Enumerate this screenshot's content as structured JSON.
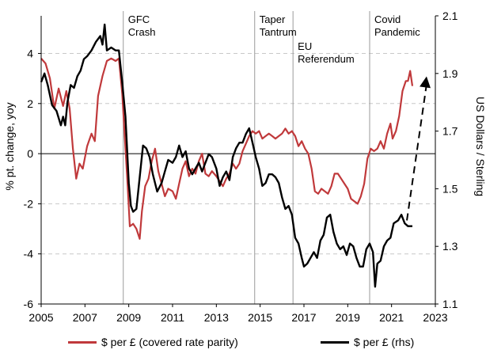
{
  "chart_data": {
    "type": "line",
    "ylabel_left": "% pt. change, yoy",
    "ylabel_right": "US Dollars / Sterling",
    "x_ticks": [
      "2005",
      "2007",
      "2009",
      "2011",
      "2013",
      "2015",
      "2017",
      "2019",
      "2021",
      "2023"
    ],
    "xlim": [
      2005,
      2023
    ],
    "y_left_ticks": [
      "4",
      "2",
      "0",
      "-2",
      "-4",
      "-6"
    ],
    "ylim_left": [
      -6,
      5.5
    ],
    "y_right_ticks": [
      "2.1",
      "1.9",
      "1.7",
      "1.5",
      "1.3",
      "1.1"
    ],
    "ylim_right": [
      1.1,
      2.1
    ],
    "annotations": [
      {
        "x": 2008.75,
        "lines": [
          "GFC",
          "Crash"
        ]
      },
      {
        "x": 2014.75,
        "lines": [
          "Taper",
          "Tantrum"
        ]
      },
      {
        "x": 2016.5,
        "lines": [
          "EU",
          "Referendum"
        ]
      },
      {
        "x": 2020.0,
        "lines": [
          "Covid",
          "Pandemic"
        ]
      }
    ],
    "arrow": {
      "from": [
        2021.7,
        1.39
      ],
      "to": [
        2022.6,
        1.89
      ]
    },
    "series": [
      {
        "name": "$ per £ (covered rate parity)",
        "axis": "left",
        "color": "#c0393b",
        "points": [
          [
            2005.0,
            3.8
          ],
          [
            2005.2,
            3.6
          ],
          [
            2005.4,
            3.0
          ],
          [
            2005.6,
            1.8
          ],
          [
            2005.8,
            2.6
          ],
          [
            2006.0,
            1.9
          ],
          [
            2006.15,
            2.5
          ],
          [
            2006.3,
            1.8
          ],
          [
            2006.45,
            0.2
          ],
          [
            2006.6,
            -1.0
          ],
          [
            2006.75,
            -0.4
          ],
          [
            2006.9,
            -0.6
          ],
          [
            2007.1,
            0.3
          ],
          [
            2007.3,
            0.8
          ],
          [
            2007.45,
            0.5
          ],
          [
            2007.6,
            2.3
          ],
          [
            2007.8,
            3.1
          ],
          [
            2008.0,
            3.7
          ],
          [
            2008.2,
            3.8
          ],
          [
            2008.4,
            3.7
          ],
          [
            2008.55,
            3.8
          ],
          [
            2008.7,
            2.4
          ],
          [
            2008.85,
            0.2
          ],
          [
            2008.95,
            -1.3
          ],
          [
            2009.05,
            -2.9
          ],
          [
            2009.2,
            -2.8
          ],
          [
            2009.35,
            -3.0
          ],
          [
            2009.5,
            -3.4
          ],
          [
            2009.6,
            -2.3
          ],
          [
            2009.75,
            -1.3
          ],
          [
            2009.9,
            -1.0
          ],
          [
            2010.05,
            -0.3
          ],
          [
            2010.2,
            0.2
          ],
          [
            2010.35,
            -0.7
          ],
          [
            2010.5,
            -1.2
          ],
          [
            2010.65,
            -1.7
          ],
          [
            2010.8,
            -1.4
          ],
          [
            2011.0,
            -1.5
          ],
          [
            2011.15,
            -1.8
          ],
          [
            2011.3,
            -1.2
          ],
          [
            2011.45,
            -0.6
          ],
          [
            2011.6,
            -0.3
          ],
          [
            2011.75,
            -0.9
          ],
          [
            2011.9,
            -0.6
          ],
          [
            2012.05,
            -0.8
          ],
          [
            2012.2,
            -0.3
          ],
          [
            2012.35,
            0.0
          ],
          [
            2012.5,
            -0.8
          ],
          [
            2012.65,
            -0.9
          ],
          [
            2012.8,
            -0.7
          ],
          [
            2013.0,
            -0.9
          ],
          [
            2013.15,
            -1.1
          ],
          [
            2013.3,
            -1.3
          ],
          [
            2013.45,
            -1.0
          ],
          [
            2013.6,
            -0.8
          ],
          [
            2013.75,
            -0.4
          ],
          [
            2013.9,
            -0.6
          ],
          [
            2014.05,
            -0.4
          ],
          [
            2014.2,
            0.1
          ],
          [
            2014.35,
            0.4
          ],
          [
            2014.5,
            0.7
          ],
          [
            2014.65,
            0.9
          ],
          [
            2014.8,
            0.8
          ],
          [
            2014.95,
            0.9
          ],
          [
            2015.1,
            0.6
          ],
          [
            2015.25,
            0.7
          ],
          [
            2015.4,
            0.8
          ],
          [
            2015.55,
            0.7
          ],
          [
            2015.7,
            0.6
          ],
          [
            2015.85,
            0.7
          ],
          [
            2016.0,
            0.8
          ],
          [
            2016.15,
            1.0
          ],
          [
            2016.3,
            0.8
          ],
          [
            2016.45,
            0.9
          ],
          [
            2016.6,
            0.7
          ],
          [
            2016.75,
            0.3
          ],
          [
            2016.9,
            0.5
          ],
          [
            2017.05,
            0.2
          ],
          [
            2017.2,
            0.0
          ],
          [
            2017.35,
            -0.6
          ],
          [
            2017.5,
            -1.5
          ],
          [
            2017.65,
            -1.6
          ],
          [
            2017.8,
            -1.4
          ],
          [
            2017.95,
            -1.5
          ],
          [
            2018.1,
            -1.6
          ],
          [
            2018.25,
            -1.3
          ],
          [
            2018.4,
            -0.8
          ],
          [
            2018.55,
            -0.8
          ],
          [
            2018.7,
            -1.0
          ],
          [
            2018.85,
            -1.2
          ],
          [
            2019.0,
            -1.4
          ],
          [
            2019.15,
            -1.8
          ],
          [
            2019.3,
            -1.9
          ],
          [
            2019.45,
            -2.0
          ],
          [
            2019.6,
            -1.7
          ],
          [
            2019.75,
            -1.2
          ],
          [
            2019.9,
            -0.2
          ],
          [
            2020.05,
            0.2
          ],
          [
            2020.2,
            0.1
          ],
          [
            2020.35,
            0.2
          ],
          [
            2020.5,
            0.5
          ],
          [
            2020.65,
            0.2
          ],
          [
            2020.8,
            0.8
          ],
          [
            2020.95,
            1.2
          ],
          [
            2021.05,
            0.6
          ],
          [
            2021.2,
            0.9
          ],
          [
            2021.35,
            1.5
          ],
          [
            2021.5,
            2.5
          ],
          [
            2021.65,
            2.9
          ],
          [
            2021.75,
            2.9
          ],
          [
            2021.85,
            3.3
          ],
          [
            2021.95,
            2.7
          ]
        ]
      },
      {
        "name": "$ per £ (rhs)",
        "axis": "right",
        "color": "#000000",
        "points": [
          [
            2005.0,
            1.87
          ],
          [
            2005.15,
            1.9
          ],
          [
            2005.3,
            1.86
          ],
          [
            2005.5,
            1.79
          ],
          [
            2005.7,
            1.77
          ],
          [
            2005.9,
            1.72
          ],
          [
            2006.0,
            1.75
          ],
          [
            2006.1,
            1.72
          ],
          [
            2006.2,
            1.8
          ],
          [
            2006.35,
            1.86
          ],
          [
            2006.5,
            1.85
          ],
          [
            2006.65,
            1.89
          ],
          [
            2006.8,
            1.91
          ],
          [
            2006.95,
            1.95
          ],
          [
            2007.1,
            1.96
          ],
          [
            2007.3,
            1.98
          ],
          [
            2007.5,
            2.01
          ],
          [
            2007.7,
            2.03
          ],
          [
            2007.8,
            2.0
          ],
          [
            2007.9,
            2.07
          ],
          [
            2008.0,
            1.98
          ],
          [
            2008.2,
            1.99
          ],
          [
            2008.4,
            1.98
          ],
          [
            2008.55,
            1.98
          ],
          [
            2008.7,
            1.87
          ],
          [
            2008.85,
            1.75
          ],
          [
            2009.0,
            1.52
          ],
          [
            2009.1,
            1.44
          ],
          [
            2009.2,
            1.42
          ],
          [
            2009.35,
            1.43
          ],
          [
            2009.5,
            1.54
          ],
          [
            2009.65,
            1.65
          ],
          [
            2009.8,
            1.64
          ],
          [
            2009.95,
            1.61
          ],
          [
            2010.1,
            1.55
          ],
          [
            2010.3,
            1.49
          ],
          [
            2010.5,
            1.52
          ],
          [
            2010.65,
            1.56
          ],
          [
            2010.8,
            1.6
          ],
          [
            2011.0,
            1.59
          ],
          [
            2011.15,
            1.61
          ],
          [
            2011.3,
            1.65
          ],
          [
            2011.45,
            1.61
          ],
          [
            2011.6,
            1.63
          ],
          [
            2011.75,
            1.57
          ],
          [
            2011.9,
            1.55
          ],
          [
            2012.05,
            1.57
          ],
          [
            2012.2,
            1.59
          ],
          [
            2012.35,
            1.56
          ],
          [
            2012.5,
            1.59
          ],
          [
            2012.65,
            1.62
          ],
          [
            2012.8,
            1.61
          ],
          [
            2013.0,
            1.57
          ],
          [
            2013.15,
            1.51
          ],
          [
            2013.3,
            1.54
          ],
          [
            2013.45,
            1.56
          ],
          [
            2013.6,
            1.53
          ],
          [
            2013.75,
            1.61
          ],
          [
            2013.9,
            1.64
          ],
          [
            2014.05,
            1.66
          ],
          [
            2014.2,
            1.66
          ],
          [
            2014.35,
            1.69
          ],
          [
            2014.5,
            1.71
          ],
          [
            2014.65,
            1.66
          ],
          [
            2014.8,
            1.61
          ],
          [
            2014.95,
            1.57
          ],
          [
            2015.1,
            1.51
          ],
          [
            2015.25,
            1.52
          ],
          [
            2015.4,
            1.55
          ],
          [
            2015.55,
            1.55
          ],
          [
            2015.7,
            1.54
          ],
          [
            2015.85,
            1.52
          ],
          [
            2016.0,
            1.47
          ],
          [
            2016.15,
            1.43
          ],
          [
            2016.3,
            1.44
          ],
          [
            2016.45,
            1.41
          ],
          [
            2016.6,
            1.33
          ],
          [
            2016.75,
            1.31
          ],
          [
            2016.9,
            1.26
          ],
          [
            2017.0,
            1.23
          ],
          [
            2017.15,
            1.24
          ],
          [
            2017.3,
            1.26
          ],
          [
            2017.45,
            1.28
          ],
          [
            2017.6,
            1.26
          ],
          [
            2017.75,
            1.32
          ],
          [
            2017.9,
            1.34
          ],
          [
            2018.05,
            1.4
          ],
          [
            2018.2,
            1.41
          ],
          [
            2018.35,
            1.35
          ],
          [
            2018.5,
            1.31
          ],
          [
            2018.65,
            1.29
          ],
          [
            2018.8,
            1.3
          ],
          [
            2018.95,
            1.27
          ],
          [
            2019.1,
            1.31
          ],
          [
            2019.25,
            1.3
          ],
          [
            2019.4,
            1.26
          ],
          [
            2019.55,
            1.23
          ],
          [
            2019.7,
            1.23
          ],
          [
            2019.85,
            1.29
          ],
          [
            2020.0,
            1.31
          ],
          [
            2020.15,
            1.28
          ],
          [
            2020.25,
            1.16
          ],
          [
            2020.35,
            1.24
          ],
          [
            2020.5,
            1.25
          ],
          [
            2020.65,
            1.3
          ],
          [
            2020.8,
            1.32
          ],
          [
            2020.95,
            1.33
          ],
          [
            2021.1,
            1.38
          ],
          [
            2021.3,
            1.39
          ],
          [
            2021.45,
            1.41
          ],
          [
            2021.6,
            1.38
          ],
          [
            2021.75,
            1.37
          ],
          [
            2021.95,
            1.37
          ]
        ]
      }
    ]
  }
}
